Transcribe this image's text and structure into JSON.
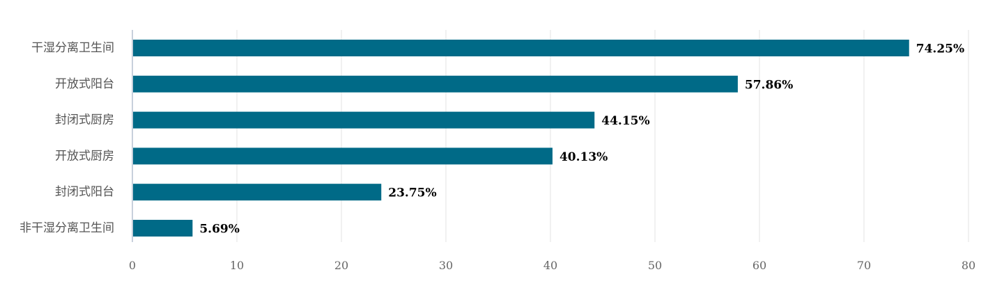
{
  "chart_data": {
    "type": "bar",
    "orientation": "horizontal",
    "title": "",
    "xlabel": "",
    "ylabel": "",
    "categories": [
      "干湿分离卫生间",
      "开放式阳台",
      "封闭式厨房",
      "开放式厨房",
      "封闭式阳台",
      "非干湿分离卫生间"
    ],
    "values": [
      74.25,
      57.86,
      44.15,
      40.13,
      23.75,
      5.69
    ],
    "data_labels": [
      "74.25%",
      "57.86%",
      "44.15%",
      "40.13%",
      "23.75%",
      "5.69%"
    ],
    "xlim": [
      0,
      80
    ],
    "xticks": [
      0,
      10,
      20,
      30,
      40,
      50,
      60,
      70,
      80
    ],
    "grid": "vertical",
    "legend": "none",
    "bar_color": "#006a87",
    "grid_color": "#e3e3e3",
    "axis_color": "#c7d0dc"
  }
}
